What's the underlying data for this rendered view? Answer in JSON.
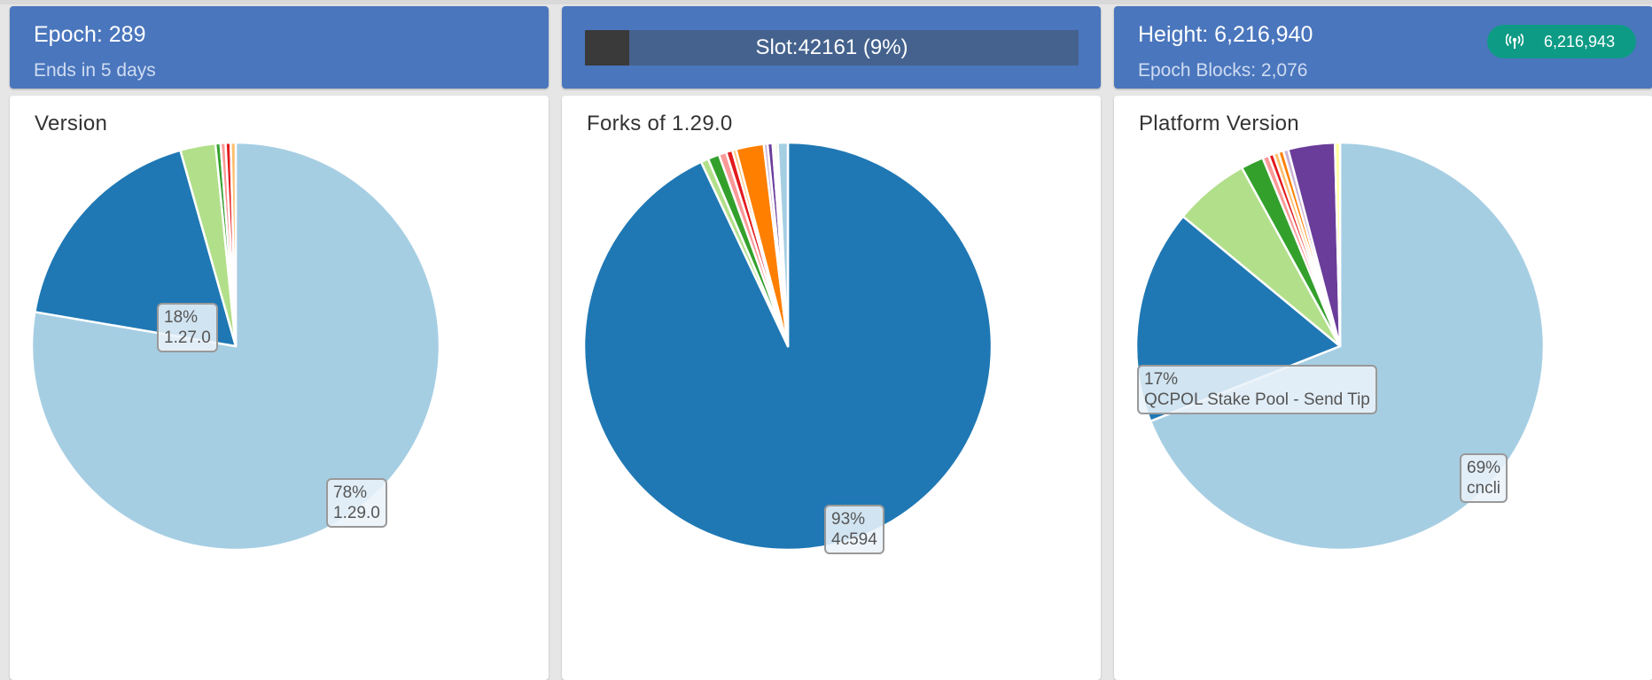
{
  "header": {
    "epoch": {
      "title": "Epoch: 289",
      "sub": "Ends in 5 days"
    },
    "slot": {
      "label": "Slot:42161 (9%)",
      "progress": 0.09
    },
    "height": {
      "title": "Height: 6,216,940",
      "sub": "Epoch Blocks: 2,076",
      "network_value": "6,216,943",
      "network_icon": "broadcast-icon"
    }
  },
  "charts": {
    "version": {
      "title": "Version",
      "tooltip_major": {
        "pct": "78%",
        "label": "1.29.0"
      },
      "tooltip_second": {
        "pct": "18%",
        "label": "1.27.0"
      }
    },
    "forks": {
      "title": "Forks of 1.29.0",
      "tooltip_major": {
        "pct": "93%",
        "label": "4c594"
      }
    },
    "platform": {
      "title": "Platform Version",
      "tooltip_major": {
        "pct": "69%",
        "label": "cncli"
      },
      "tooltip_second": {
        "pct": "17%",
        "label": "QCPOL Stake Pool - Send Tip"
      }
    }
  },
  "chart_data": [
    {
      "type": "pie",
      "title": "Version",
      "slices": [
        {
          "label": "1.29.0",
          "value": 78,
          "color": "#a6cee3"
        },
        {
          "label": "1.27.0",
          "value": 18,
          "color": "#1f78b4"
        },
        {
          "label": "",
          "value": 2.8,
          "color": "#b2df8a"
        },
        {
          "label": "",
          "value": 0.4,
          "color": "#33a02c"
        },
        {
          "label": "",
          "value": 0.4,
          "color": "#fb9a99"
        },
        {
          "label": "",
          "value": 0.4,
          "color": "#e31a1c"
        },
        {
          "label": "",
          "value": 0.4,
          "color": "#fdbf6f"
        }
      ]
    },
    {
      "type": "pie",
      "title": "Forks of 1.29.0",
      "slices": [
        {
          "label": "4c594",
          "value": 93,
          "color": "#1f78b4"
        },
        {
          "label": "",
          "value": 0.6,
          "color": "#b2df8a"
        },
        {
          "label": "",
          "value": 0.9,
          "color": "#33a02c"
        },
        {
          "label": "",
          "value": 0.6,
          "color": "#fb9a99"
        },
        {
          "label": "",
          "value": 0.5,
          "color": "#e31a1c"
        },
        {
          "label": "",
          "value": 0.3,
          "color": "#fdbf6f"
        },
        {
          "label": "",
          "value": 2.2,
          "color": "#ff7f00"
        },
        {
          "label": "",
          "value": 0.3,
          "color": "#cab2d6"
        },
        {
          "label": "",
          "value": 0.4,
          "color": "#6a3d9a"
        },
        {
          "label": "",
          "value": 0.2,
          "color": "#ffff99"
        },
        {
          "label": "",
          "value": 0.2,
          "color": "#b2df8a"
        },
        {
          "label": "",
          "value": 0.8,
          "color": "#a6cee3"
        }
      ]
    },
    {
      "type": "pie",
      "title": "Platform Version",
      "slices": [
        {
          "label": "cncli",
          "value": 69,
          "color": "#a6cee3"
        },
        {
          "label": "QCPOL Stake Pool - Send Tip",
          "value": 17,
          "color": "#1f78b4"
        },
        {
          "label": "",
          "value": 6,
          "color": "#b2df8a"
        },
        {
          "label": "",
          "value": 1.8,
          "color": "#33a02c"
        },
        {
          "label": "",
          "value": 0.5,
          "color": "#fb9a99"
        },
        {
          "label": "",
          "value": 0.4,
          "color": "#e31a1c"
        },
        {
          "label": "",
          "value": 0.4,
          "color": "#fdbf6f"
        },
        {
          "label": "",
          "value": 0.4,
          "color": "#ff7f00"
        },
        {
          "label": "",
          "value": 0.4,
          "color": "#cab2d6"
        },
        {
          "label": "",
          "value": 3.7,
          "color": "#6a3d9a"
        },
        {
          "label": "",
          "value": 0.4,
          "color": "#ffff99"
        }
      ]
    }
  ]
}
